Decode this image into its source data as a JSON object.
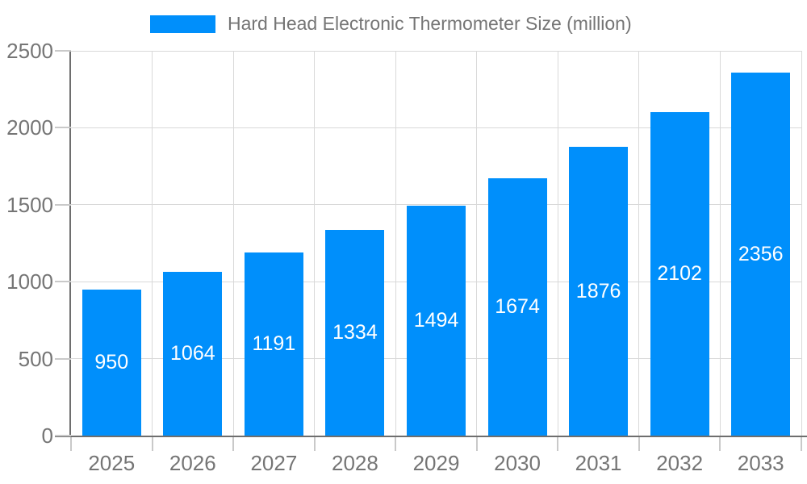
{
  "legend": {
    "label": "Hard Head Electronic Thermometer Size (million)"
  },
  "colors": {
    "bar": "#008ffb",
    "bar_label": "#ffffff",
    "axis_text": "#757575",
    "axis_line": "#6e6e6e",
    "gridline": "#d9d9d9",
    "tick": "#c9c9c9",
    "background": "#ffffff"
  },
  "chart_data": {
    "type": "bar",
    "title": "Hard Head Electronic Thermometer Size (million)",
    "categories": [
      "2025",
      "2026",
      "2027",
      "2028",
      "2029",
      "2030",
      "2031",
      "2032",
      "2033"
    ],
    "values": [
      950,
      1064,
      1191,
      1334,
      1494,
      1674,
      1876,
      2102,
      2356
    ],
    "series": [
      {
        "name": "Hard Head Electronic Thermometer Size (million)",
        "values": [
          950,
          1064,
          1191,
          1334,
          1494,
          1674,
          1876,
          2102,
          2356
        ]
      }
    ],
    "xlabel": "",
    "ylabel": "",
    "ylim": [
      0,
      2500
    ],
    "y_ticks": [
      0,
      500,
      1000,
      1500,
      2000,
      2500
    ],
    "grid": true,
    "legend_position": "top",
    "bar_labels_visible": true
  }
}
